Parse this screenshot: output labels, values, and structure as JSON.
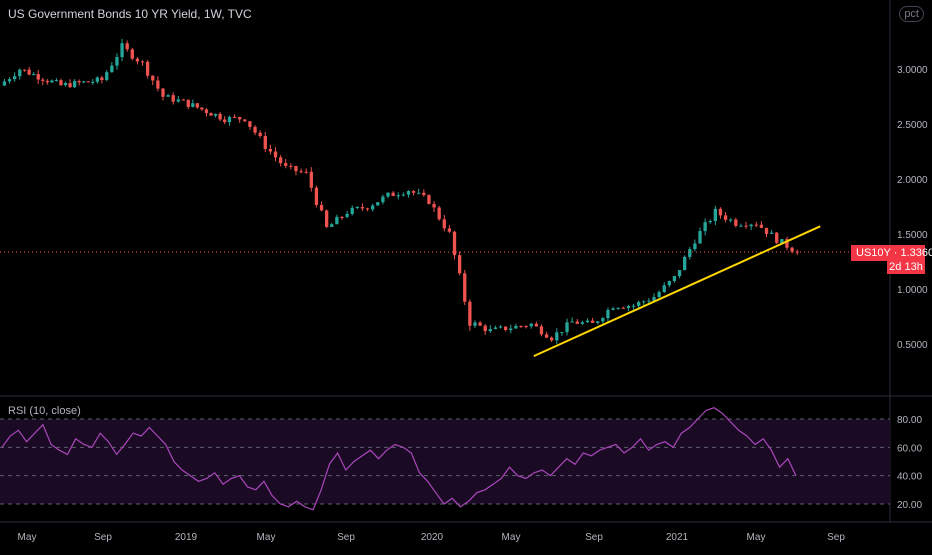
{
  "header": {
    "title": "US Government Bonds 10 YR Yield, 1W, TVC"
  },
  "scale_badge": "pct",
  "rsi_title": "RSI (10, close)",
  "price_tag": {
    "symbol": "US10Y",
    "value": "1.3360",
    "countdown": "2d 13h"
  },
  "colors": {
    "up": "#26a69a",
    "down": "#ef5350",
    "trendline": "#ffd600",
    "rsi_line": "#ab47bc",
    "rsi_band": "#1a0a24",
    "price_tag": "#f23645"
  },
  "chart_data": [
    {
      "type": "candlestick",
      "title": "US Government Bonds 10 YR Yield, 1W, TVC",
      "y_scale": "linear",
      "ylim": [
        0.2,
        3.5
      ],
      "y_ticks": [
        "3.0000",
        "2.5000",
        "2.0000",
        "1.5000",
        "1.0000",
        "0.5000"
      ],
      "x_ticks": [
        "May",
        "Sep",
        "2019",
        "May",
        "Sep",
        "2020",
        "May",
        "Sep",
        "2021",
        "May",
        "Sep"
      ],
      "last_value": 1.336,
      "trendline": {
        "from": {
          "x": "2020-06",
          "y": 0.39
        },
        "to": {
          "x": "2021-08",
          "y": 1.57
        }
      },
      "series": [
        {
          "x": "2018-04",
          "close": 2.85
        },
        {
          "x": "2018-05",
          "close": 3.0
        },
        {
          "x": "2018-07",
          "close": 2.85
        },
        {
          "x": "2018-09",
          "close": 2.9
        },
        {
          "x": "2018-10",
          "close": 3.2
        },
        {
          "x": "2018-11",
          "close": 3.05
        },
        {
          "x": "2018-12",
          "close": 2.75
        },
        {
          "x": "2019-01",
          "close": 2.7
        },
        {
          "x": "2019-03",
          "close": 2.55
        },
        {
          "x": "2019-04",
          "close": 2.55
        },
        {
          "x": "2019-05",
          "close": 2.3
        },
        {
          "x": "2019-06",
          "close": 2.1
        },
        {
          "x": "2019-07",
          "close": 2.05
        },
        {
          "x": "2019-08",
          "close": 1.55
        },
        {
          "x": "2019-09",
          "close": 1.7
        },
        {
          "x": "2019-10",
          "close": 1.75
        },
        {
          "x": "2019-11",
          "close": 1.85
        },
        {
          "x": "2019-12",
          "close": 1.9
        },
        {
          "x": "2020-01",
          "close": 1.8
        },
        {
          "x": "2020-02",
          "close": 1.5
        },
        {
          "x": "2020-03",
          "close": 0.7
        },
        {
          "x": "2020-04",
          "close": 0.62
        },
        {
          "x": "2020-05",
          "close": 0.65
        },
        {
          "x": "2020-06",
          "close": 0.68
        },
        {
          "x": "2020-07",
          "close": 0.56
        },
        {
          "x": "2020-08",
          "close": 0.7
        },
        {
          "x": "2020-09",
          "close": 0.68
        },
        {
          "x": "2020-10",
          "close": 0.85
        },
        {
          "x": "2020-11",
          "close": 0.85
        },
        {
          "x": "2020-12",
          "close": 0.93
        },
        {
          "x": "2021-01",
          "close": 1.1
        },
        {
          "x": "2021-02",
          "close": 1.45
        },
        {
          "x": "2021-03",
          "close": 1.7
        },
        {
          "x": "2021-04",
          "close": 1.6
        },
        {
          "x": "2021-05",
          "close": 1.6
        },
        {
          "x": "2021-06",
          "close": 1.45
        },
        {
          "x": "2021-07",
          "close": 1.336
        }
      ]
    },
    {
      "type": "line",
      "title": "RSI (10, close)",
      "ylim": [
        10,
        90
      ],
      "y_ticks": [
        "80.00",
        "60.00",
        "40.00",
        "20.00"
      ],
      "levels": [
        80,
        60,
        40,
        20
      ],
      "values": [
        60,
        68,
        72,
        64,
        70,
        76,
        62,
        58,
        55,
        66,
        62,
        60,
        70,
        64,
        55,
        62,
        70,
        68,
        74,
        68,
        62,
        50,
        44,
        40,
        36,
        38,
        42,
        34,
        38,
        40,
        32,
        30,
        36,
        26,
        20,
        18,
        22,
        18,
        16,
        30,
        48,
        56,
        44,
        50,
        54,
        58,
        52,
        58,
        62,
        60,
        56,
        42,
        36,
        28,
        20,
        24,
        18,
        22,
        28,
        30,
        34,
        38,
        46,
        40,
        38,
        42,
        44,
        40,
        46,
        52,
        48,
        56,
        54,
        58,
        60,
        62,
        56,
        60,
        66,
        58,
        62,
        64,
        60,
        70,
        74,
        80,
        86,
        88,
        84,
        78,
        72,
        68,
        62,
        66,
        58,
        46,
        52,
        40
      ]
    }
  ]
}
